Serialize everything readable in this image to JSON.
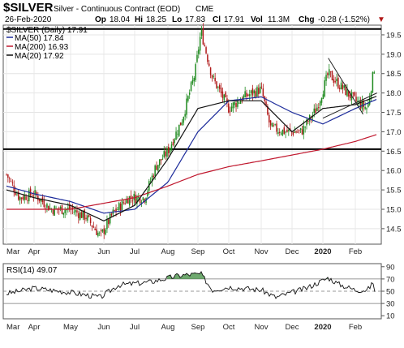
{
  "header": {
    "symbol": "$SILVER",
    "name": "Silver - Continuous Contract (EOD)",
    "exchange": "CME",
    "date": "26-Feb-2020",
    "op_label": "Op",
    "op": "18.04",
    "hi_label": "Hi",
    "hi": "18.25",
    "lo_label": "Lo",
    "lo": "17.83",
    "cl_label": "Cl",
    "cl": "17.91",
    "vol_label": "Vol",
    "vol": "11.3M",
    "chg_label": "Chg",
    "chg": "-0.28 (-1.52%)",
    "chg_arrow": "▼"
  },
  "legend": {
    "price": "$SILVER (Daily) 17.91",
    "ma50": "MA(50) 17.84",
    "ma200": "MA(200) 16.93",
    "ma20": "MA(20) 17.92"
  },
  "rsi_label": "RSI(14) 49.07",
  "colors": {
    "up": "#1f8a1f",
    "down": "#b01818",
    "ma50": "#1b2a9a",
    "ma200": "#c0182e",
    "ma20": "#111111",
    "rsi_fill": "#3f8c3f"
  },
  "chart_data": [
    {
      "type": "line",
      "title": "$SILVER Silver - Continuous Contract (EOD)",
      "x_ticks": [
        "Mar",
        "Apr",
        "May",
        "Jun",
        "Jul",
        "Aug",
        "Sep",
        "Oct",
        "Nov",
        "Dec",
        "2020",
        "Feb"
      ],
      "y_ticks": [
        "14.5",
        "15.0",
        "15.5",
        "16.0",
        "16.5",
        "17.0",
        "17.5",
        "18.0",
        "18.5",
        "19.0",
        "19.5"
      ],
      "ylim": [
        14.1,
        19.75
      ],
      "horizontal_lines": [
        19.65,
        16.55
      ],
      "series": [
        {
          "name": "$SILVER (Daily)",
          "x": [
            "Mar 1",
            "Mar 15",
            "Apr 1",
            "Apr 15",
            "May 1",
            "May 15",
            "May 28",
            "Jun 10",
            "Jun 25",
            "Jul 10",
            "Jul 20",
            "Aug 1",
            "Aug 15",
            "Aug 28",
            "Sep 4",
            "Sep 15",
            "Oct 1",
            "Oct 15",
            "Nov 1",
            "Nov 10",
            "Nov 25",
            "Dec 10",
            "Dec 25",
            "Jan 6",
            "Jan 20",
            "Feb 1",
            "Feb 15",
            "Feb 24",
            "Feb 26"
          ],
          "values": [
            15.9,
            15.3,
            15.4,
            15.0,
            15.0,
            14.8,
            14.3,
            14.9,
            15.3,
            15.3,
            16.1,
            16.5,
            17.3,
            18.5,
            19.6,
            18.4,
            17.6,
            17.9,
            18.1,
            17.1,
            17.0,
            17.0,
            17.6,
            18.5,
            18.1,
            17.8,
            17.6,
            18.8,
            17.91
          ]
        },
        {
          "name": "MA(50)",
          "x": [
            "Mar 1",
            "Apr 1",
            "May 1",
            "Jun 1",
            "Jul 1",
            "Aug 1",
            "Sep 1",
            "Oct 1",
            "Nov 1",
            "Dec 1",
            "Jan 1",
            "Feb 1",
            "Feb 26"
          ],
          "values": [
            15.6,
            15.4,
            15.2,
            14.9,
            15.0,
            15.7,
            17.0,
            17.8,
            17.9,
            17.5,
            17.2,
            17.6,
            17.84
          ]
        },
        {
          "name": "MA(200)",
          "x": [
            "Mar 1",
            "May 1",
            "Jul 1",
            "Aug 1",
            "Sep 1",
            "Oct 1",
            "Nov 1",
            "Dec 1",
            "Jan 1",
            "Feb 1",
            "Feb 26"
          ],
          "values": [
            15.0,
            15.0,
            15.3,
            15.6,
            15.9,
            16.1,
            16.25,
            16.4,
            16.55,
            16.75,
            16.93
          ]
        },
        {
          "name": "MA(20)",
          "x": [
            "Mar 1",
            "Apr 1",
            "May 1",
            "Jun 1",
            "Jul 1",
            "Aug 1",
            "Sep 1",
            "Oct 1",
            "Nov 1",
            "Dec 1",
            "Jan 1",
            "Feb 1",
            "Feb 26"
          ],
          "values": [
            15.5,
            15.3,
            15.1,
            14.7,
            15.1,
            16.3,
            17.6,
            17.8,
            17.8,
            17.0,
            17.6,
            17.7,
            17.92
          ]
        }
      ]
    },
    {
      "type": "line",
      "title": "RSI(14)",
      "y_ticks": [
        "10",
        "30",
        "50",
        "70",
        "90"
      ],
      "ylim": [
        5,
        95
      ],
      "horizontal_lines": [
        30,
        50,
        70
      ],
      "series": [
        {
          "name": "RSI(14)",
          "x": [
            "Mar 1",
            "Apr 1",
            "May 1",
            "May 28",
            "Jun 15",
            "Jul 15",
            "Aug 10",
            "Aug 20",
            "Sep 4",
            "Sep 15",
            "Oct 1",
            "Nov 1",
            "Nov 15",
            "Dec 15",
            "Jan 6",
            "Jan 15",
            "Feb 1",
            "Feb 15",
            "Feb 24",
            "Feb 26"
          ],
          "values": [
            46,
            55,
            48,
            40,
            60,
            65,
            75,
            77,
            78,
            52,
            57,
            52,
            40,
            55,
            72,
            62,
            52,
            52,
            68,
            49.07
          ]
        }
      ]
    }
  ]
}
